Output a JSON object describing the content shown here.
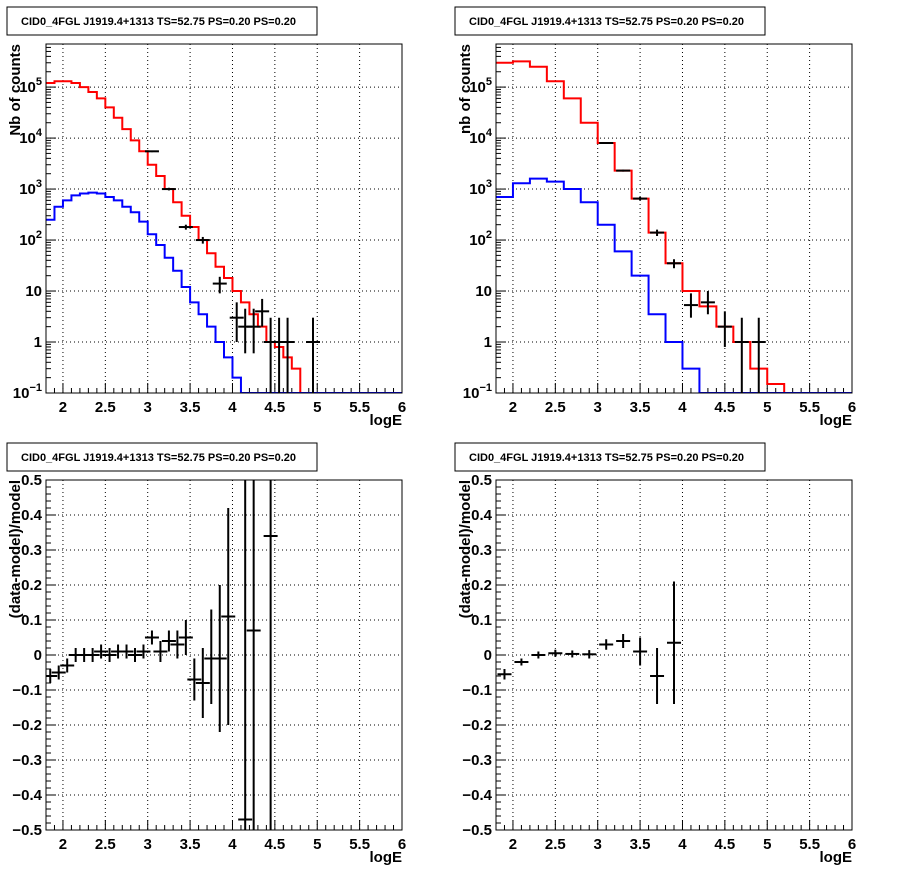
{
  "chart_data": [
    {
      "type": "line",
      "title": "CID0_4FGL J1919.4+1313 TS=52.75 PS=0.20 PS=0.20",
      "xlabel": "logE",
      "ylabel": "Nb of counts",
      "xlim": [
        1.8,
        6.0
      ],
      "ylim": [
        0.1,
        700000
      ],
      "yscale": "log",
      "grid": true,
      "x_ticks": [
        "2",
        "2.5",
        "3",
        "3.5",
        "4",
        "4.5",
        "5",
        "5.5",
        "6"
      ],
      "x_tick_values": [
        2,
        2.5,
        3,
        3.5,
        4,
        4.5,
        5,
        5.5,
        6
      ],
      "y_ticks": [
        "10^-1",
        "1",
        "10",
        "10^2",
        "10^3",
        "10^4",
        "10^5"
      ],
      "y_tick_values": [
        0.1,
        1,
        10,
        100,
        1000,
        10000,
        100000
      ],
      "colors": {
        "total_model": "#ff0000",
        "source_model": "#0000ff",
        "data": "#000000"
      },
      "series": [
        {
          "style": "step",
          "color": "#ff0000",
          "bin_edges": [
            1.8,
            1.9,
            2.0,
            2.1,
            2.2,
            2.3,
            2.4,
            2.5,
            2.6,
            2.7,
            2.8,
            2.9,
            3.0,
            3.1,
            3.2,
            3.3,
            3.4,
            3.5,
            3.6,
            3.7,
            3.8,
            3.9,
            4.0,
            4.1,
            4.2,
            4.3,
            4.4,
            4.5,
            4.6,
            4.7,
            4.8,
            4.9,
            5.0,
            5.1,
            5.2,
            5.3,
            5.4,
            5.5,
            5.6,
            5.7,
            5.8,
            5.9,
            6.0
          ],
          "values": [
            120000,
            130000,
            130000,
            120000,
            100000,
            80000,
            60000,
            40000,
            25000,
            15000,
            9000,
            5500,
            3000,
            1800,
            1000,
            550,
            300,
            180,
            100,
            55,
            30,
            18,
            10,
            6,
            3.5,
            2,
            1,
            0.8,
            0.5,
            0.3,
            0.1,
            0.1,
            0.1,
            0.1,
            0.1,
            0.1,
            0.1,
            0.1,
            0.1,
            0.1,
            0.1,
            0.1
          ]
        },
        {
          "style": "step",
          "color": "#0000ff",
          "bin_edges": [
            1.8,
            1.9,
            2.0,
            2.1,
            2.2,
            2.3,
            2.4,
            2.5,
            2.6,
            2.7,
            2.8,
            2.9,
            3.0,
            3.1,
            3.2,
            3.3,
            3.4,
            3.5,
            3.6,
            3.7,
            3.8,
            3.9,
            4.0,
            4.1,
            4.2,
            4.3,
            4.4,
            4.5,
            4.6,
            4.7,
            4.8,
            4.9,
            5.0,
            5.1,
            5.2,
            5.3,
            5.4,
            5.5,
            5.6,
            5.7,
            5.8,
            5.9,
            6.0
          ],
          "values": [
            250,
            450,
            600,
            750,
            820,
            850,
            820,
            700,
            600,
            450,
            350,
            230,
            130,
            80,
            45,
            25,
            12,
            6,
            3.5,
            2,
            1,
            0.5,
            0.2,
            0.1,
            0.1,
            0.1,
            0.1,
            0.1,
            0.1,
            0.1,
            0.1,
            0.1,
            0.1,
            0.1,
            0.1,
            0.1,
            0.1,
            0.1,
            0.1,
            0.1,
            0.1,
            0.1
          ]
        },
        {
          "style": "points",
          "color": "#000000",
          "x": [
            3.05,
            3.25,
            3.45,
            3.65,
            3.85,
            4.05,
            4.15,
            4.25,
            4.35,
            4.45,
            4.55,
            4.65,
            4.95
          ],
          "y": [
            5500,
            1000,
            180,
            100,
            14,
            3,
            2,
            2,
            4,
            1,
            1,
            1,
            1
          ],
          "ylo": [
            5300,
            940,
            160,
            85,
            9,
            1,
            0.6,
            0.6,
            2,
            0.1,
            0.1,
            0.1,
            0.1
          ],
          "yhi": [
            5700,
            1060,
            200,
            115,
            19,
            6,
            4.5,
            4.5,
            7,
            3,
            3,
            3,
            3
          ]
        }
      ]
    },
    {
      "type": "line",
      "title": "CID0_4FGL J1919.4+1313 TS=52.75 PS=0.20 PS=0.20",
      "xlabel": "logE",
      "ylabel": "nb of counts",
      "xlim": [
        1.8,
        6.0
      ],
      "ylim": [
        0.1,
        700000
      ],
      "yscale": "log",
      "grid": true,
      "x_ticks": [
        "2",
        "2.5",
        "3",
        "3.5",
        "4",
        "4.5",
        "5",
        "5.5",
        "6"
      ],
      "x_tick_values": [
        2,
        2.5,
        3,
        3.5,
        4,
        4.5,
        5,
        5.5,
        6
      ],
      "y_ticks": [
        "10^-1",
        "1",
        "10",
        "10^2",
        "10^3",
        "10^4",
        "10^5"
      ],
      "y_tick_values": [
        0.1,
        1,
        10,
        100,
        1000,
        10000,
        100000
      ],
      "series": [
        {
          "style": "step",
          "color": "#ff0000",
          "bin_edges": [
            1.8,
            2.0,
            2.2,
            2.4,
            2.6,
            2.8,
            3.0,
            3.2,
            3.4,
            3.6,
            3.8,
            4.0,
            4.2,
            4.4,
            4.6,
            4.8,
            5.0,
            5.2,
            5.4,
            5.6,
            5.8,
            6.0
          ],
          "values": [
            300000,
            320000,
            250000,
            130000,
            60000,
            20000,
            8000,
            2300,
            650,
            140,
            35,
            10,
            5,
            2,
            1,
            0.3,
            0.15,
            0.1,
            0.1,
            0.1,
            0.1
          ]
        },
        {
          "style": "step",
          "color": "#0000ff",
          "bin_edges": [
            1.8,
            2.0,
            2.2,
            2.4,
            2.6,
            2.8,
            3.0,
            3.2,
            3.4,
            3.6,
            3.8,
            4.0,
            4.2,
            4.4,
            4.6,
            4.8,
            5.0,
            5.2,
            5.4,
            5.6,
            5.8,
            6.0
          ],
          "values": [
            700,
            1300,
            1600,
            1400,
            1000,
            550,
            200,
            60,
            20,
            3.5,
            1,
            0.3,
            0.1,
            0.1,
            0.1,
            0.1,
            0.1,
            0.1,
            0.1,
            0.1,
            0.1
          ]
        },
        {
          "style": "points",
          "color": "#000000",
          "x": [
            3.1,
            3.3,
            3.5,
            3.7,
            3.9,
            4.1,
            4.3,
            4.5,
            4.7,
            4.9
          ],
          "y": [
            8000,
            2300,
            650,
            140,
            35,
            5.3,
            6,
            2,
            1,
            1
          ],
          "ylo": [
            7800,
            2200,
            600,
            120,
            28,
            3,
            3.5,
            0.8,
            0.1,
            0.1
          ],
          "yhi": [
            8200,
            2400,
            700,
            160,
            42,
            9,
            10,
            4,
            3,
            3
          ]
        }
      ]
    },
    {
      "type": "scatter",
      "title": "CID0_4FGL J1919.4+1313 TS=52.75 PS=0.20 PS=0.20",
      "xlabel": "logE",
      "ylabel": "(data-model)/model",
      "xlim": [
        1.8,
        6.0
      ],
      "ylim": [
        -0.5,
        0.5
      ],
      "grid": true,
      "x_ticks": [
        "2",
        "2.5",
        "3",
        "3.5",
        "4",
        "4.5",
        "5",
        "5.5",
        "6"
      ],
      "x_tick_values": [
        2,
        2.5,
        3,
        3.5,
        4,
        4.5,
        5,
        5.5,
        6
      ],
      "y_ticks": [
        "−0.5",
        "−0.4",
        "−0.3",
        "−0.2",
        "−0.1",
        "0",
        "0.1",
        "0.2",
        "0.3",
        "0.4",
        "0.5"
      ],
      "y_tick_values": [
        -0.5,
        -0.4,
        -0.3,
        -0.2,
        -0.1,
        0,
        0.1,
        0.2,
        0.3,
        0.4,
        0.5
      ],
      "series": [
        {
          "style": "points",
          "color": "#000000",
          "x": [
            1.85,
            1.95,
            2.05,
            2.15,
            2.25,
            2.35,
            2.45,
            2.55,
            2.65,
            2.75,
            2.85,
            2.95,
            3.05,
            3.15,
            3.25,
            3.35,
            3.45,
            3.55,
            3.65,
            3.75,
            3.85,
            3.95,
            4.15,
            4.25,
            4.45
          ],
          "y": [
            -0.06,
            -0.05,
            -0.03,
            0.0,
            0.0,
            0.0,
            0.01,
            0.0,
            0.01,
            0.01,
            0.0,
            0.01,
            0.05,
            0.01,
            0.04,
            0.03,
            0.05,
            -0.07,
            -0.08,
            -0.01,
            -0.01,
            0.11,
            -0.47,
            0.07,
            0.34
          ],
          "ylo": [
            -0.08,
            -0.07,
            -0.05,
            -0.02,
            -0.02,
            -0.02,
            -0.01,
            -0.02,
            -0.01,
            -0.01,
            -0.02,
            -0.01,
            0.03,
            -0.02,
            0.01,
            -0.01,
            0.0,
            -0.13,
            -0.18,
            -0.14,
            -0.22,
            -0.2,
            -0.5,
            -0.5,
            -0.5
          ],
          "yhi": [
            -0.04,
            -0.03,
            -0.01,
            0.02,
            0.02,
            0.02,
            0.03,
            0.02,
            0.03,
            0.03,
            0.02,
            0.03,
            0.07,
            0.04,
            0.07,
            0.07,
            0.1,
            -0.01,
            0.02,
            0.13,
            0.2,
            0.42,
            0.5,
            0.5,
            0.5
          ]
        }
      ]
    },
    {
      "type": "scatter",
      "title": "CID0_4FGL J1919.4+1313 TS=52.75 PS=0.20 PS=0.20",
      "xlabel": "logE",
      "ylabel": "(data-model)/model",
      "xlim": [
        1.8,
        6.0
      ],
      "ylim": [
        -0.5,
        0.5
      ],
      "grid": true,
      "x_ticks": [
        "2",
        "2.5",
        "3",
        "3.5",
        "4",
        "4.5",
        "5",
        "5.5",
        "6"
      ],
      "x_tick_values": [
        2,
        2.5,
        3,
        3.5,
        4,
        4.5,
        5,
        5.5,
        6
      ],
      "y_ticks": [
        "−0.5",
        "−0.4",
        "−0.3",
        "−0.2",
        "−0.1",
        "0",
        "0.1",
        "0.2",
        "0.3",
        "0.4",
        "0.5"
      ],
      "y_tick_values": [
        -0.5,
        -0.4,
        -0.3,
        -0.2,
        -0.1,
        0,
        0.1,
        0.2,
        0.3,
        0.4,
        0.5
      ],
      "series": [
        {
          "style": "points",
          "color": "#000000",
          "x": [
            1.9,
            2.1,
            2.3,
            2.5,
            2.7,
            2.9,
            3.1,
            3.3,
            3.5,
            3.7,
            3.9
          ],
          "y": [
            -0.055,
            -0.02,
            0.0,
            0.005,
            0.003,
            0.002,
            0.03,
            0.04,
            0.01,
            -0.06,
            0.035
          ],
          "ylo": [
            -0.07,
            -0.03,
            -0.01,
            -0.005,
            -0.007,
            -0.01,
            0.015,
            0.02,
            -0.03,
            -0.14,
            -0.14
          ],
          "yhi": [
            -0.04,
            -0.01,
            0.01,
            0.015,
            0.013,
            0.014,
            0.045,
            0.06,
            0.05,
            0.02,
            0.21
          ]
        }
      ]
    }
  ]
}
